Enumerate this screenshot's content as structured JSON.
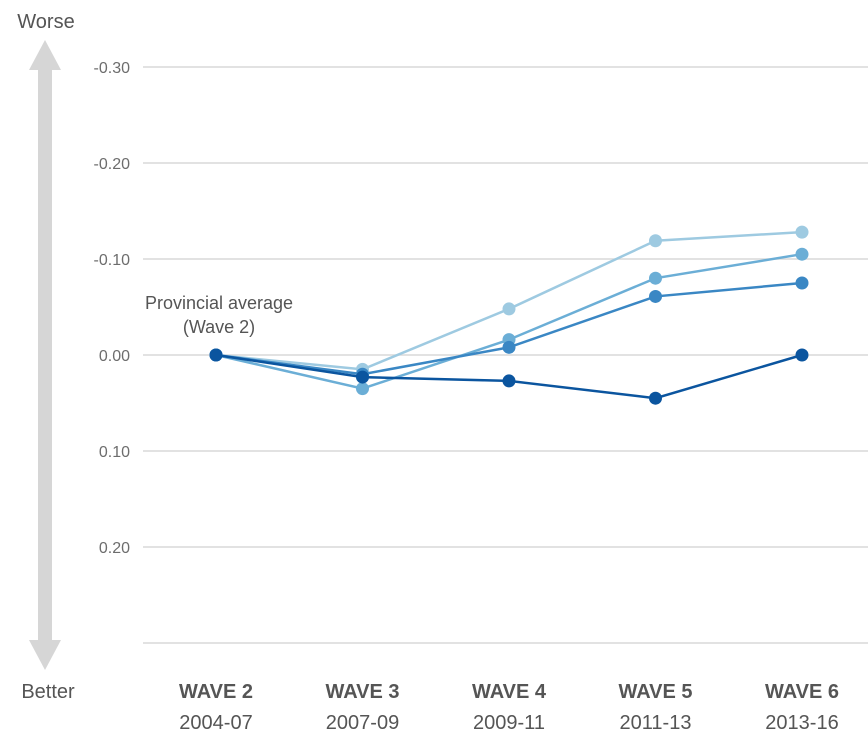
{
  "chart_data": {
    "type": "line",
    "y_axis_inverted": true,
    "ylim": [
      -0.3,
      0.3
    ],
    "y_ticks": [
      "-0.30",
      "-0.20",
      "-0.10",
      "0.00",
      "0.10",
      "0.20"
    ],
    "y_tick_values": [
      -0.3,
      -0.2,
      -0.1,
      0.0,
      0.1,
      0.2
    ],
    "direction": {
      "top": "Worse",
      "bottom": "Better"
    },
    "categories": [
      {
        "name": "WAVE 2",
        "period": "2004-07"
      },
      {
        "name": "WAVE 3",
        "period": "2007-09"
      },
      {
        "name": "WAVE 4",
        "period": "2009-11"
      },
      {
        "name": "WAVE 5",
        "period": "2011-13"
      },
      {
        "name": "WAVE 6",
        "period": "2013-16"
      }
    ],
    "annotation": {
      "line1": "Provincial average",
      "line2": "(Wave 2)",
      "value": 0.0
    },
    "grid": true,
    "legend": "none",
    "series": [
      {
        "color": "#9ecae1",
        "values": [
          0.0,
          0.015,
          -0.048,
          -0.119,
          -0.128
        ]
      },
      {
        "color": "#6baed6",
        "values": [
          0.0,
          0.035,
          -0.016,
          -0.08,
          -0.105
        ]
      },
      {
        "color": "#3a87c4",
        "values": [
          0.0,
          0.02,
          -0.008,
          -0.061,
          -0.075
        ]
      },
      {
        "color": "#0b559f",
        "values": [
          0.0,
          0.023,
          0.027,
          0.045,
          0.0
        ]
      }
    ]
  }
}
